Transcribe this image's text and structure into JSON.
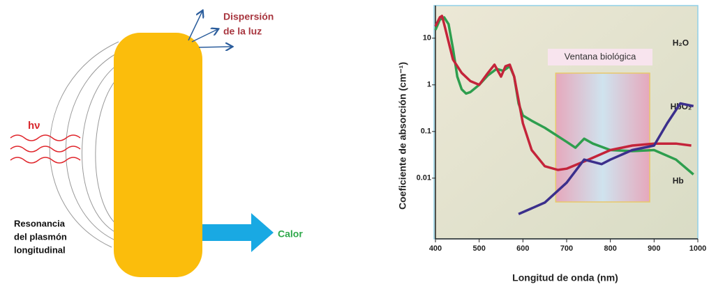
{
  "diagram": {
    "photon": "hν",
    "scattering": [
      "Dispersión",
      "de la luz"
    ],
    "resonance": [
      "Resonancia",
      "del plasmón",
      "longitudinal"
    ],
    "heat": "Calor"
  },
  "chart_data": {
    "type": "line",
    "x_label": "Longitud de onda (nm)",
    "y_label": "Coeficiente de absorción (cm⁻¹)",
    "xlim": [
      400,
      1000
    ],
    "xticks": [
      400,
      500,
      600,
      700,
      800,
      900,
      1000
    ],
    "ylim": [
      0.0005,
      50
    ],
    "yticks": [
      0.01,
      0.1,
      1,
      10
    ],
    "log_y": true,
    "annotation": {
      "text": "Ventana biológica",
      "x_range": [
        675,
        890
      ]
    },
    "series": [
      {
        "name": "Hb",
        "color": "#2e9e4e",
        "x": [
          400,
          410,
          420,
          430,
          440,
          450,
          460,
          470,
          480,
          500,
          520,
          540,
          555,
          570,
          580,
          590,
          600,
          620,
          650,
          700,
          720,
          740,
          760,
          800,
          850,
          900,
          950,
          990
        ],
        "values": [
          15,
          25,
          28,
          20,
          6,
          1.5,
          0.8,
          0.65,
          0.7,
          1.0,
          1.6,
          2.2,
          2.0,
          2.5,
          1.5,
          0.4,
          0.22,
          0.17,
          0.12,
          0.06,
          0.045,
          0.07,
          0.055,
          0.04,
          0.038,
          0.04,
          0.025,
          0.012
        ]
      },
      {
        "name": "HbO₂",
        "color": "#c4243a",
        "x": [
          400,
          410,
          415,
          420,
          440,
          460,
          480,
          500,
          520,
          535,
          550,
          560,
          570,
          580,
          600,
          620,
          650,
          680,
          700,
          750,
          800,
          850,
          900,
          950,
          985
        ],
        "values": [
          18,
          28,
          30,
          20,
          3.5,
          1.8,
          1.2,
          1.0,
          1.8,
          2.7,
          1.5,
          2.5,
          2.7,
          1.5,
          0.15,
          0.04,
          0.018,
          0.015,
          0.016,
          0.025,
          0.04,
          0.05,
          0.055,
          0.055,
          0.05
        ]
      },
      {
        "name": "H₂O",
        "color": "#3b2f8c",
        "x": [
          590,
          650,
          700,
          740,
          780,
          800,
          850,
          900,
          930,
          960,
          990
        ],
        "values": [
          0.0017,
          0.003,
          0.008,
          0.025,
          0.02,
          0.025,
          0.04,
          0.05,
          0.15,
          0.4,
          0.35
        ]
      }
    ]
  }
}
